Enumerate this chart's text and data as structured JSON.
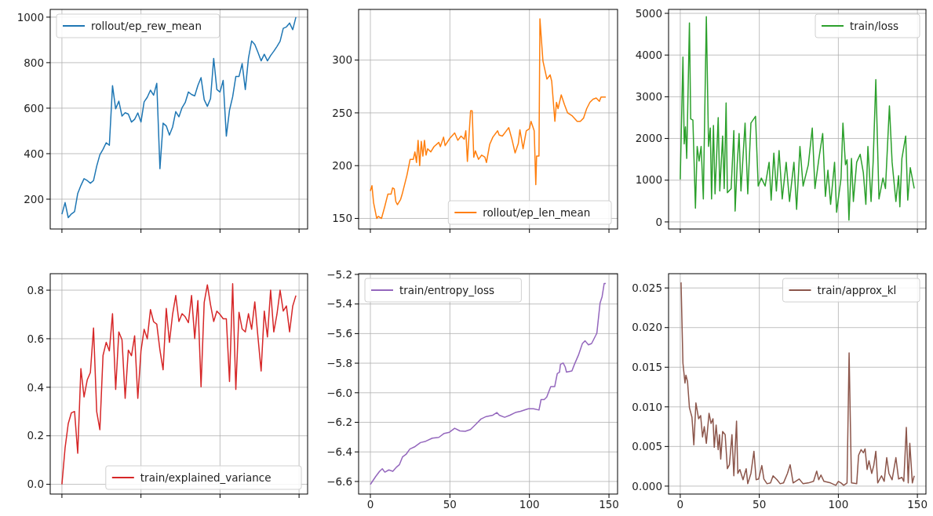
{
  "chart_data": [
    {
      "type": "line",
      "categories": [
        null,
        null,
        null,
        null,
        null,
        null,
        null,
        null,
        null,
        null,
        null,
        null,
        null,
        null,
        null,
        null,
        null,
        null,
        null,
        null,
        null,
        null,
        null,
        null,
        null,
        null,
        null,
        null,
        null,
        null,
        null,
        null,
        null,
        null,
        null,
        null,
        null,
        null,
        null,
        null,
        null,
        null,
        null,
        null,
        null,
        null,
        null,
        null,
        null,
        null,
        null,
        null,
        null,
        null,
        null,
        null,
        null,
        null,
        null,
        null,
        null,
        null,
        null,
        null,
        null,
        null,
        null,
        null,
        null,
        null,
        null,
        null,
        null,
        null,
        null
      ],
      "ylim": [
        69,
        1034
      ],
      "yticks": [
        200,
        400,
        600,
        800,
        1000
      ],
      "grid": true,
      "legend": "top left",
      "tick_labels": "y",
      "series": [
        {
          "name": "rollout/ep_rew_mean",
          "color": "#1f77b4",
          "values": [
            134,
            185,
            119,
            135,
            145,
            225,
            260,
            290,
            282,
            270,
            282,
            345,
            395,
            419,
            448,
            437,
            699,
            597,
            631,
            565,
            580,
            574,
            539,
            551,
            579,
            539,
            628,
            648,
            679,
            657,
            709,
            334,
            534,
            522,
            482,
            517,
            585,
            562,
            602,
            625,
            671,
            660,
            654,
            700,
            734,
            637,
            608,
            642,
            819,
            682,
            671,
            722,
            477,
            591,
            650,
            739,
            739,
            796,
            682,
            820,
            895,
            880,
            845,
            808,
            837,
            808,
            831,
            850,
            871,
            894,
            951,
            957,
            974,
            945,
            1000
          ]
        }
      ]
    },
    {
      "type": "line",
      "xlim": [
        -7.4,
        155.4
      ],
      "xticks": [
        0,
        50,
        100,
        150
      ],
      "ylim": [
        140,
        348
      ],
      "yticks": [
        150,
        200,
        250,
        300
      ],
      "grid": true,
      "legend": "bottom right",
      "tick_labels": "y",
      "series": [
        {
          "name": "rollout/ep_len_mean",
          "color": "#ff7f0e",
          "x": [
            0,
            1,
            2,
            4,
            5,
            7,
            9,
            11,
            13,
            14,
            15,
            16,
            17,
            19,
            20,
            23,
            25,
            27,
            28,
            29,
            30,
            31,
            32,
            33,
            34,
            35,
            36,
            38,
            40,
            43,
            44,
            46,
            47,
            50,
            53,
            55,
            57,
            59,
            60,
            61,
            63,
            64,
            65,
            66,
            68,
            70,
            72,
            73,
            75,
            77,
            80,
            81,
            83,
            85,
            87,
            89,
            91,
            93,
            94,
            96,
            98,
            100,
            101,
            103,
            104,
            104.5,
            106,
            106.6,
            108.5,
            111,
            113,
            114,
            116,
            117,
            118,
            120,
            122,
            124,
            127,
            130,
            132,
            134,
            136,
            138,
            140,
            142,
            144,
            145,
            148
          ],
          "values": [
            176,
            181,
            165,
            150,
            152,
            150,
            161,
            173,
            173,
            179,
            178,
            166,
            163,
            168,
            173,
            191,
            206,
            206,
            213,
            203,
            224,
            200,
            223,
            209,
            224,
            210,
            216,
            213,
            218,
            222,
            218,
            227,
            219,
            226,
            231,
            224,
            228,
            225,
            233,
            204,
            252,
            252,
            208,
            214,
            206,
            210,
            208,
            203,
            220,
            227,
            233,
            229,
            228,
            232,
            236,
            225,
            212,
            221,
            234,
            216,
            233,
            235,
            242,
            233,
            182,
            209,
            209,
            339,
            299,
            282,
            286,
            280,
            242,
            260,
            254,
            267,
            258,
            250,
            247,
            242,
            242,
            245,
            254,
            260,
            263,
            264,
            261,
            265,
            265
          ]
        }
      ]
    },
    {
      "type": "line",
      "xlim": [
        -7.4,
        155.4
      ],
      "xticks": [
        0,
        50,
        100,
        150
      ],
      "ylim": [
        -170,
        5094
      ],
      "yticks": [
        0,
        1000,
        2000,
        3000,
        4000,
        5000
      ],
      "grid": true,
      "legend": "top right",
      "tick_labels": "y",
      "series": [
        {
          "name": "train/loss",
          "color": "#2ca02c",
          "x": [
            0,
            1.7,
            2.5,
            3.3,
            4.1,
            5.8,
            6.6,
            8,
            9.6,
            10.7,
            11.9,
            13.2,
            14.6,
            16.5,
            17.9,
            19,
            19.8,
            21,
            22,
            24,
            25,
            26.8,
            27.8,
            29,
            29.8,
            32.2,
            33.9,
            34.7,
            36,
            37.2,
            38.4,
            39.7,
            41,
            42.7,
            44.7,
            47.6,
            49.3,
            51.3,
            53.7,
            56.2,
            57.5,
            59.2,
            60.8,
            62.5,
            64.5,
            67,
            69.1,
            71.9,
            73.6,
            75.7,
            77.7,
            81,
            83.5,
            85.2,
            87.6,
            90.1,
            91.8,
            93.4,
            95.1,
            97.6,
            98.9,
            101.7,
            102.9,
            104.5,
            105.5,
            106.7,
            108.3,
            109.5,
            111.6,
            113.8,
            115.8,
            117.4,
            118.7,
            120.7,
            122,
            123.7,
            125.7,
            128.2,
            129.8,
            132.3,
            134,
            136.4,
            138.1,
            138.9,
            140.2,
            142.6,
            143.9,
            145.5,
            148
          ],
          "values": [
            1020,
            3950,
            1870,
            2280,
            1520,
            4770,
            2470,
            2440,
            330,
            1810,
            1460,
            1810,
            550,
            4920,
            1810,
            2250,
            550,
            2310,
            670,
            2500,
            740,
            2060,
            800,
            2850,
            700,
            800,
            2190,
            260,
            1370,
            2120,
            740,
            1560,
            2370,
            670,
            2370,
            2530,
            860,
            1050,
            860,
            1430,
            520,
            1650,
            740,
            1710,
            550,
            1430,
            490,
            1430,
            300,
            1810,
            860,
            1370,
            2250,
            800,
            1490,
            2120,
            610,
            1240,
            420,
            1430,
            230,
            1050,
            2370,
            1370,
            1490,
            40,
            1520,
            490,
            1430,
            1620,
            1180,
            420,
            1810,
            490,
            1430,
            3410,
            550,
            1050,
            800,
            2780,
            1430,
            490,
            1110,
            360,
            1520,
            2060,
            520,
            1300,
            800
          ]
        }
      ]
    },
    {
      "type": "line",
      "categories": [
        null,
        null,
        null,
        null,
        null,
        null,
        null,
        null,
        null,
        null,
        null,
        null,
        null,
        null,
        null,
        null,
        null,
        null,
        null,
        null,
        null,
        null,
        null,
        null,
        null,
        null,
        null,
        null,
        null,
        null,
        null,
        null,
        null,
        null,
        null,
        null,
        null,
        null,
        null,
        null,
        null,
        null,
        null,
        null,
        null,
        null,
        null,
        null,
        null,
        null,
        null,
        null,
        null,
        null,
        null,
        null,
        null,
        null,
        null,
        null,
        null,
        null,
        null,
        null,
        null,
        null,
        null,
        null,
        null,
        null,
        null,
        null,
        null,
        null,
        null
      ],
      "ylim": [
        -0.04,
        0.868
      ],
      "yticks": [
        {
          "value": 0,
          "label": "0.0"
        },
        {
          "value": 0.2,
          "label": "0.2"
        },
        {
          "value": 0.4,
          "label": "0.4"
        },
        {
          "value": 0.6,
          "label": "0.6"
        },
        {
          "value": 0.8,
          "label": "0.8"
        }
      ],
      "grid": true,
      "legend": "bottom right",
      "tick_labels": "y",
      "series": [
        {
          "name": "train/explained_variance",
          "color": "#d62728",
          "values": [
            0,
            0.15,
            0.25,
            0.295,
            0.3,
            0.128,
            0.477,
            0.36,
            0.43,
            0.461,
            0.644,
            0.3,
            0.225,
            0.531,
            0.585,
            0.55,
            0.703,
            0.391,
            0.628,
            0.596,
            0.354,
            0.553,
            0.53,
            0.612,
            0.354,
            0.55,
            0.639,
            0.6,
            0.72,
            0.67,
            0.66,
            0.553,
            0.472,
            0.725,
            0.585,
            0.7,
            0.778,
            0.671,
            0.703,
            0.69,
            0.666,
            0.778,
            0.601,
            0.757,
            0.402,
            0.75,
            0.822,
            0.74,
            0.671,
            0.714,
            0.7,
            0.682,
            0.682,
            0.424,
            0.827,
            0.391,
            0.709,
            0.64,
            0.628,
            0.703,
            0.639,
            0.752,
            0.607,
            0.467,
            0.714,
            0.607,
            0.8,
            0.628,
            0.7,
            0.8,
            0.714,
            0.735,
            0.628,
            0.735,
            0.778
          ]
        }
      ]
    },
    {
      "type": "line",
      "xlim": [
        -7.4,
        155.4
      ],
      "xticks": [
        0,
        50,
        100,
        150
      ],
      "ylim": [
        -6.685,
        -5.195
      ],
      "yticks": [
        {
          "value": -6.6,
          "label": "−6.6"
        },
        {
          "value": -6.4,
          "label": "−6.4"
        },
        {
          "value": -6.2,
          "label": "−6.2"
        },
        {
          "value": -6.0,
          "label": "−6.0"
        },
        {
          "value": -5.8,
          "label": "−5.8"
        },
        {
          "value": -5.6,
          "label": "−5.6"
        },
        {
          "value": -5.4,
          "label": "−5.4"
        },
        {
          "value": -5.2,
          "label": "−5.2"
        }
      ],
      "grid": true,
      "legend": "top left",
      "series": [
        {
          "name": "train/entropy_loss",
          "color": "#9467bd",
          "x": [
            0,
            3.3,
            5.8,
            7.5,
            9.1,
            11.6,
            14.1,
            16.6,
            18.2,
            20.2,
            22.4,
            24.8,
            28.1,
            31.5,
            34.8,
            38.9,
            43,
            46.4,
            49.7,
            53,
            56.3,
            59.6,
            62.9,
            66.2,
            69.5,
            72.8,
            77,
            79.5,
            81.1,
            84.4,
            87.7,
            91.1,
            94.4,
            99.3,
            102.6,
            106,
            107.3,
            109.3,
            110.9,
            113.4,
            115.9,
            117.5,
            118.9,
            119.5,
            121.2,
            122.5,
            123.3,
            126.7,
            128.3,
            130.8,
            133.3,
            135,
            137.1,
            139.1,
            141.6,
            142.4,
            144.4,
            145.7,
            147,
            148
          ],
          "values": [
            -6.62,
            -6.567,
            -6.531,
            -6.514,
            -6.537,
            -6.522,
            -6.531,
            -6.501,
            -6.487,
            -6.434,
            -6.417,
            -6.381,
            -6.364,
            -6.337,
            -6.328,
            -6.307,
            -6.302,
            -6.275,
            -6.267,
            -6.24,
            -6.258,
            -6.261,
            -6.249,
            -6.214,
            -6.178,
            -6.161,
            -6.152,
            -6.134,
            -6.152,
            -6.166,
            -6.152,
            -6.134,
            -6.126,
            -6.108,
            -6.108,
            -6.117,
            -6.046,
            -6.046,
            -6.029,
            -5.958,
            -5.958,
            -5.87,
            -5.861,
            -5.808,
            -5.799,
            -5.826,
            -5.861,
            -5.852,
            -5.808,
            -5.746,
            -5.667,
            -5.649,
            -5.676,
            -5.667,
            -5.614,
            -5.596,
            -5.394,
            -5.35,
            -5.261,
            -5.261
          ]
        }
      ]
    },
    {
      "type": "line",
      "xlim": [
        -7.4,
        155.4
      ],
      "xticks": [
        0,
        50,
        100,
        150
      ],
      "ylim": [
        -0.001,
        0.0268
      ],
      "yticks": [
        {
          "value": 0,
          "label": "0.000"
        },
        {
          "value": 0.005,
          "label": "0.005"
        },
        {
          "value": 0.01,
          "label": "0.010"
        },
        {
          "value": 0.015,
          "label": "0.015"
        },
        {
          "value": 0.02,
          "label": "0.020"
        },
        {
          "value": 0.025,
          "label": "0.025"
        }
      ],
      "grid": true,
      "legend": "top right",
      "series": [
        {
          "name": "train/approx_kl",
          "color": "#8c564b",
          "x": [
            0.5,
            1.7,
            3,
            3.6,
            4.6,
            5.8,
            7.4,
            8.6,
            9.9,
            11.6,
            12.9,
            14.1,
            15.2,
            16.5,
            18.2,
            19.5,
            20.7,
            21.5,
            22.7,
            24,
            24.8,
            25.6,
            26.8,
            28.4,
            29.8,
            31.1,
            32.7,
            33.9,
            35.6,
            36.4,
            37.7,
            39.7,
            41.7,
            42.7,
            44.7,
            46.6,
            48,
            49.6,
            51.6,
            52.9,
            54.9,
            57.1,
            58.7,
            61.2,
            63.2,
            65.3,
            67.8,
            69.5,
            71.4,
            75.2,
            77.7,
            81,
            84.3,
            86.3,
            87.6,
            89,
            90.9,
            95.1,
            98.4,
            100,
            101.7,
            103.4,
            105.5,
            106.8,
            108.3,
            111.6,
            112.8,
            114.4,
            115.8,
            116.9,
            118.2,
            119.4,
            121.1,
            122.4,
            123.7,
            124.9,
            127.3,
            129,
            130.6,
            132,
            134,
            136.4,
            138.1,
            140.2,
            141.4,
            143,
            144.2,
            145.2,
            146.8,
            148
          ],
          "values": [
            0.0257,
            0.0155,
            0.013,
            0.014,
            0.0132,
            0.0099,
            0.0087,
            0.0052,
            0.0105,
            0.0085,
            0.0089,
            0.0062,
            0.0075,
            0.0054,
            0.0092,
            0.0079,
            0.0085,
            0.0049,
            0.0077,
            0.0046,
            0.0065,
            0.0034,
            0.0069,
            0.0065,
            0.0022,
            0.0027,
            0.0065,
            0.0013,
            0.0082,
            0.0016,
            0.0021,
            0.0008,
            0.0022,
            0.0003,
            0.0016,
            0.0044,
            0.0008,
            0.0009,
            0.0026,
            0.0009,
            0.0003,
            0.0004,
            0.0013,
            0.0008,
            0.0003,
            0.0004,
            0.0016,
            0.0027,
            0.0004,
            0.0009,
            0.0003,
            0.0004,
            0.0006,
            0.0019,
            0.0008,
            0.0014,
            0.0006,
            0.0004,
            0.0001,
            0.0006,
            0.0004,
            0.0001,
            0.0004,
            0.0168,
            0.0004,
            0.0003,
            0.0039,
            0.0046,
            0.0042,
            0.0047,
            0.0021,
            0.0032,
            0.0016,
            0.0026,
            0.0044,
            0.0004,
            0.0013,
            0.0006,
            0.0036,
            0.0016,
            0.0008,
            0.0036,
            0.0009,
            0.0011,
            0.0006,
            0.0074,
            0.0004,
            0.0054,
            0.0004,
            0.0013
          ]
        }
      ]
    }
  ]
}
